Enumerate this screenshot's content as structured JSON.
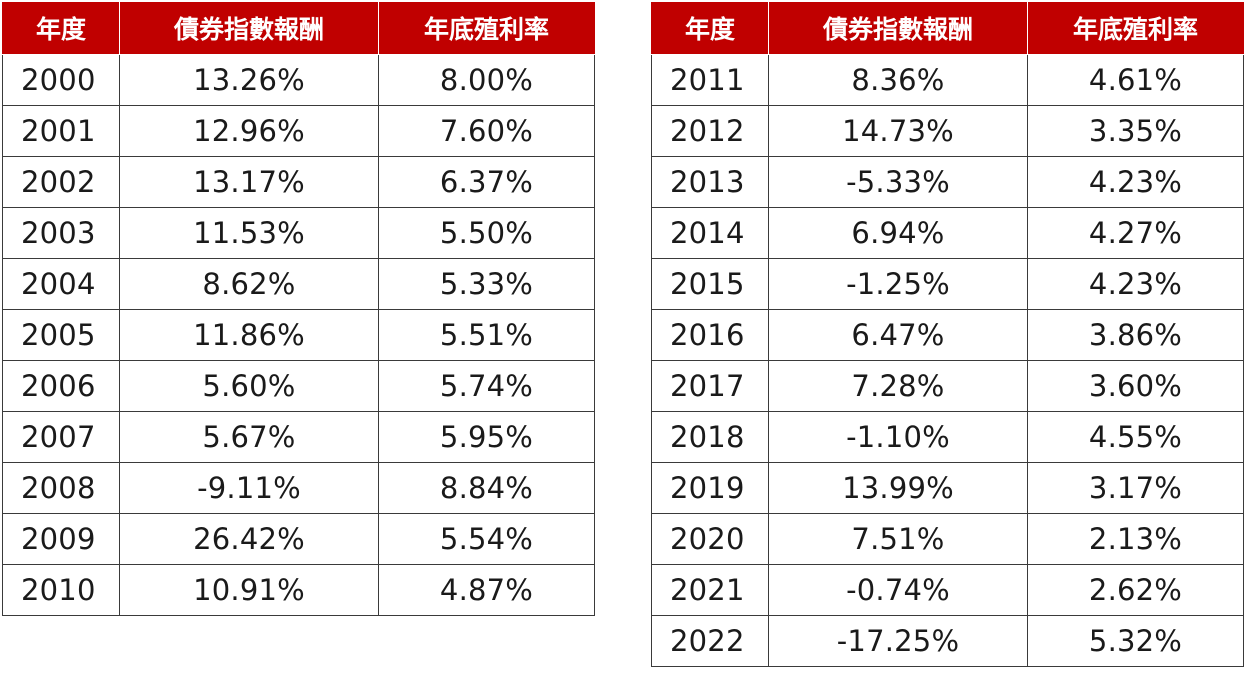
{
  "headers": {
    "year": "年度",
    "return": "債券指數報酬",
    "yield": "年底殖利率"
  },
  "tables": [
    {
      "rows": [
        {
          "year": "2000",
          "return": "13.26%",
          "yield": "8.00%"
        },
        {
          "year": "2001",
          "return": "12.96%",
          "yield": "7.60%"
        },
        {
          "year": "2002",
          "return": "13.17%",
          "yield": "6.37%"
        },
        {
          "year": "2003",
          "return": "11.53%",
          "yield": "5.50%"
        },
        {
          "year": "2004",
          "return": "8.62%",
          "yield": "5.33%"
        },
        {
          "year": "2005",
          "return": "11.86%",
          "yield": "5.51%"
        },
        {
          "year": "2006",
          "return": "5.60%",
          "yield": "5.74%"
        },
        {
          "year": "2007",
          "return": "5.67%",
          "yield": "5.95%"
        },
        {
          "year": "2008",
          "return": "-9.11%",
          "yield": "8.84%"
        },
        {
          "year": "2009",
          "return": "26.42%",
          "yield": "5.54%"
        },
        {
          "year": "2010",
          "return": "10.91%",
          "yield": "4.87%"
        }
      ]
    },
    {
      "rows": [
        {
          "year": "2011",
          "return": "8.36%",
          "yield": "4.61%"
        },
        {
          "year": "2012",
          "return": "14.73%",
          "yield": "3.35%"
        },
        {
          "year": "2013",
          "return": "-5.33%",
          "yield": "4.23%"
        },
        {
          "year": "2014",
          "return": "6.94%",
          "yield": "4.27%"
        },
        {
          "year": "2015",
          "return": "-1.25%",
          "yield": "4.23%"
        },
        {
          "year": "2016",
          "return": "6.47%",
          "yield": "3.86%"
        },
        {
          "year": "2017",
          "return": "7.28%",
          "yield": "3.60%"
        },
        {
          "year": "2018",
          "return": "-1.10%",
          "yield": "4.55%"
        },
        {
          "year": "2019",
          "return": "13.99%",
          "yield": "3.17%"
        },
        {
          "year": "2020",
          "return": "7.51%",
          "yield": "2.13%"
        },
        {
          "year": "2021",
          "return": "-0.74%",
          "yield": "2.62%"
        },
        {
          "year": "2022",
          "return": "-17.25%",
          "yield": "5.32%"
        }
      ]
    }
  ]
}
